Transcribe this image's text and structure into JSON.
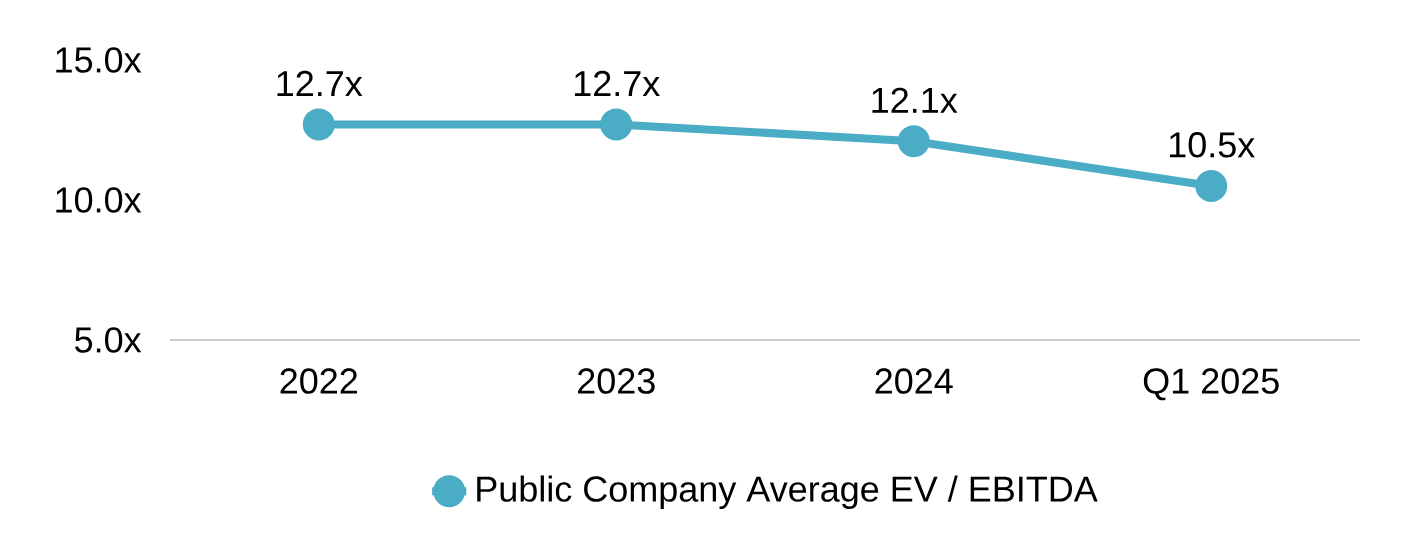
{
  "chart_data": {
    "type": "line",
    "categories": [
      "2022",
      "2023",
      "2024",
      "Q1 2025"
    ],
    "series": [
      {
        "name": "Public Company Average EV / EBITDA",
        "color": "#4bacc6",
        "values": [
          12.7,
          12.7,
          12.1,
          10.5
        ],
        "value_labels": [
          "12.7x",
          "12.7x",
          "12.1x",
          "10.5x"
        ]
      }
    ],
    "ylim": [
      5,
      15
    ],
    "yticks": [
      {
        "value": 5,
        "label": "5.0x"
      },
      {
        "value": 10,
        "label": "10.0x"
      },
      {
        "value": 15,
        "label": "15.0x"
      }
    ],
    "marker": "circle",
    "line_style": "solid",
    "legend": "bottom"
  }
}
